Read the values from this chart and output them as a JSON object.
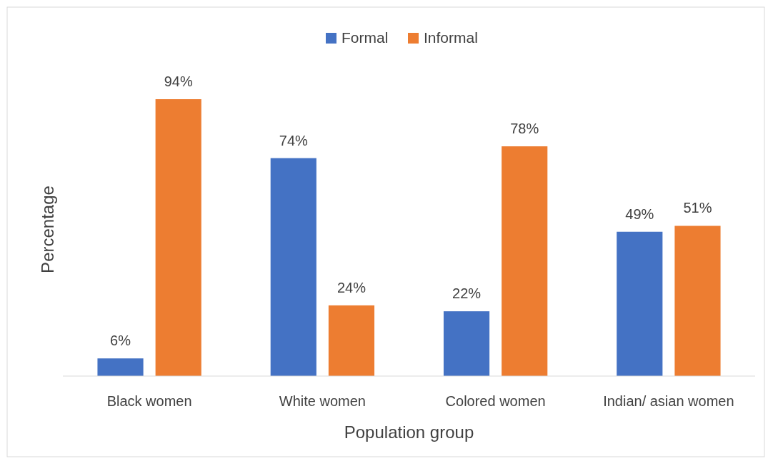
{
  "chart_data": {
    "type": "bar",
    "xlabel": "Population group",
    "ylabel": "Percentage",
    "categories": [
      "Black women",
      "White women",
      "Colored women",
      "Indian/ asian women"
    ],
    "series": [
      {
        "name": "Formal",
        "color": "#4472c4",
        "values": [
          6,
          74,
          22,
          49
        ],
        "value_labels": [
          "6%",
          "74%",
          "22%",
          "49%"
        ]
      },
      {
        "name": "Informal",
        "color": "#ed7d31",
        "values": [
          94,
          24,
          78,
          51
        ],
        "value_labels": [
          "94%",
          "24%",
          "78%",
          "51%"
        ]
      }
    ],
    "legend": "top"
  }
}
